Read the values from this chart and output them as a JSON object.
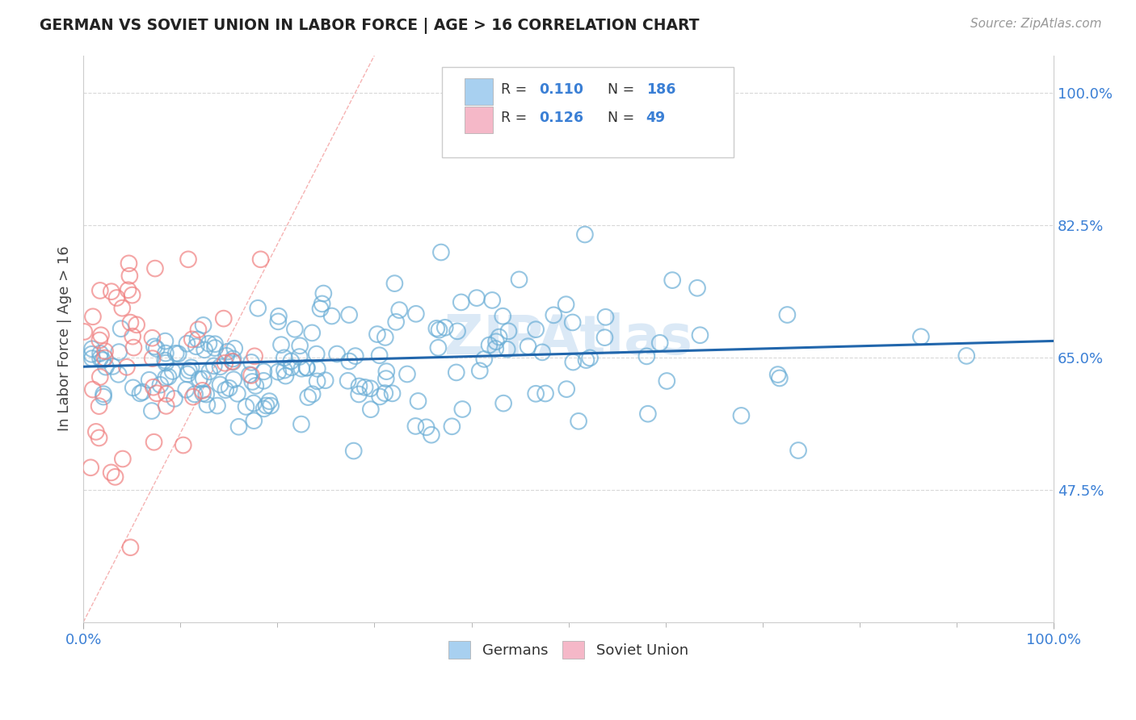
{
  "title": "GERMAN VS SOVIET UNION IN LABOR FORCE | AGE > 16 CORRELATION CHART",
  "source": "Source: ZipAtlas.com",
  "ylabel": "In Labor Force | Age > 16",
  "xlim": [
    0.0,
    1.0
  ],
  "ylim": [
    0.3,
    1.05
  ],
  "x_tick_labels": [
    "0.0%",
    "100.0%"
  ],
  "x_ticks": [
    0.0,
    1.0
  ],
  "y_tick_labels": [
    "47.5%",
    "65.0%",
    "82.5%",
    "100.0%"
  ],
  "y_ticks": [
    0.475,
    0.65,
    0.825,
    1.0
  ],
  "german_color": "#6baed6",
  "soviet_color": "#f08080",
  "trendline_color": "#2166ac",
  "background_color": "#ffffff",
  "grid_color": "#d8d8d8",
  "title_color": "#222222",
  "axis_label_color": "#444444",
  "tick_label_color": "#3a7fd5",
  "legend_label_german": "Germans",
  "legend_label_soviet": "Soviet Union",
  "R_german": "0.110",
  "N_german": "186",
  "R_soviet": "0.126",
  "N_soviet": "49",
  "watermark": "ZIPAtlas",
  "ref_line_color": "#f08080",
  "trendline_y0": 0.638,
  "trendline_y1": 0.672
}
